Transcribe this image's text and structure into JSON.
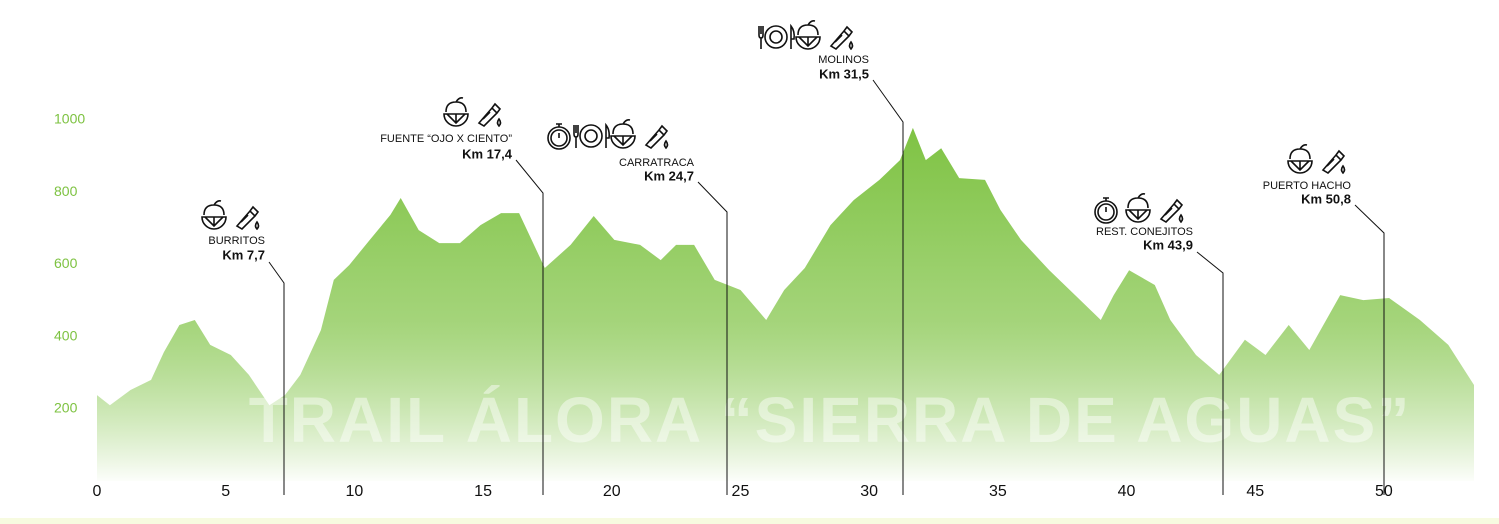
{
  "chart_data": {
    "type": "area",
    "title": "TRAIL ÁLORA “SIERRA DE AGUAS”",
    "color": "#7dc241",
    "x": [
      0,
      0.5,
      1.3,
      2.1,
      2.6,
      3.2,
      3.8,
      4.4,
      5.2,
      5.9,
      6.7,
      7.3,
      7.9,
      8.7,
      9.2,
      9.8,
      10.6,
      11.4,
      11.8,
      12.5,
      13.3,
      14.1,
      14.9,
      15.7,
      16.4,
      17.4,
      18.4,
      19.3,
      20.1,
      21.1,
      21.9,
      22.5,
      23.2,
      24.0,
      25.0,
      26.0,
      26.7,
      27.5,
      28.5,
      29.4,
      30.4,
      31.2,
      31.7,
      32.2,
      32.8,
      33.5,
      34.5,
      35.1,
      35.9,
      37.0,
      38.0,
      39.0,
      39.5,
      40.1,
      41.1,
      41.7,
      42.7,
      43.6,
      44.6,
      45.4,
      46.3,
      47.1,
      48.3,
      49.2,
      50.2,
      51.4,
      52.5,
      53.5
    ],
    "values": [
      238,
      210,
      252,
      280,
      357,
      432,
      446,
      377,
      349,
      294,
      210,
      238,
      294,
      418,
      557,
      598,
      668,
      737,
      784,
      695,
      659,
      659,
      709,
      742,
      742,
      590,
      654,
      734,
      668,
      654,
      612,
      654,
      654,
      557,
      529,
      446,
      529,
      590,
      709,
      778,
      834,
      889,
      978,
      889,
      922,
      839,
      834,
      751,
      668,
      584,
      515,
      446,
      515,
      584,
      543,
      446,
      349,
      294,
      391,
      349,
      432,
      363,
      515,
      501,
      507,
      446,
      377,
      266
    ],
    "xlim": [
      0,
      53.5
    ],
    "ylim": [
      0,
      1000
    ],
    "xticks": [
      0,
      5,
      10,
      15,
      20,
      25,
      30,
      35,
      40,
      45,
      50
    ],
    "yticks": [
      200,
      400,
      600,
      800,
      1000
    ],
    "annotations": [
      {
        "label": "BURRITOS",
        "km": "Km 7,7"
      },
      {
        "label": "FUENTE “OJO X CIENTO”",
        "km": "Km 17,4"
      },
      {
        "label": "CARRATRACA",
        "km": "Km 24,7"
      },
      {
        "label": "MOLINOS",
        "km": "Km 31,5"
      },
      {
        "label": "REST. CONEJITOS",
        "km": "Km 43,9"
      },
      {
        "label": "PUERTO HACHO",
        "km": "Km 50,8"
      }
    ]
  }
}
